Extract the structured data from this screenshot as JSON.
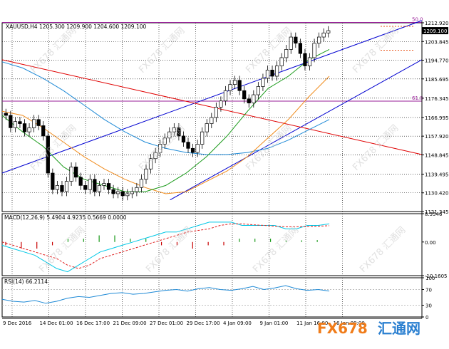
{
  "chart_data": [
    {
      "type": "candlestick",
      "title": "XAUUSD,H4  1205.300 1209.900 1204.600 1209.100",
      "symbol": "XAUUSD,H4",
      "ohlc_header": [
        "1205.300",
        "1209.900",
        "1204.600",
        "1209.100"
      ],
      "current_price": "1209.100",
      "y_ticks": [
        "1212.920",
        "1203.845",
        "1194.770",
        "1185.695",
        "1176.345",
        "1166.995",
        "1157.920",
        "1148.845",
        "1139.495",
        "1130.420",
        "1121.345"
      ],
      "ylim": [
        1121.345,
        1212.92
      ],
      "fib_levels": [
        {
          "label": "50.0",
          "value": 1213.1
        },
        {
          "label": "61.8",
          "value": 1174.9
        }
      ],
      "channel_lines": [
        {
          "color": "#0000d0",
          "points": [
            [
              0,
              1140
            ],
            [
              100,
              1214
            ]
          ]
        },
        {
          "color": "#0000d0",
          "points": [
            [
              40,
              1127
            ],
            [
              100,
              1195
            ]
          ]
        },
        {
          "color": "#e00000",
          "points": [
            [
              0,
              1195
            ],
            [
              100,
              1149
            ]
          ]
        }
      ],
      "moving_averages": [
        {
          "color": "#1f8ad6",
          "values": [
            1194,
            1191,
            1186,
            1180,
            1173,
            1166,
            1160,
            1155,
            1152,
            1150,
            1149,
            1149,
            1150,
            1152,
            1156,
            1161,
            1166
          ]
        },
        {
          "color": "#f08a1a",
          "values": [
            1170,
            1168,
            1162,
            1155,
            1148,
            1142,
            1137,
            1133,
            1130,
            1131,
            1136,
            1141,
            1148,
            1157,
            1166,
            1177,
            1187
          ]
        },
        {
          "color": "#1a9a1a",
          "values": [
            1168,
            1160,
            1153,
            1143,
            1137,
            1134,
            1131,
            1131,
            1134,
            1140,
            1148,
            1158,
            1170,
            1181,
            1187,
            1195,
            1200
          ]
        }
      ],
      "closes": [
        1168,
        1162,
        1165,
        1164,
        1160,
        1162,
        1166,
        1163,
        1158,
        1140,
        1132,
        1134,
        1131,
        1136,
        1143,
        1138,
        1134,
        1132,
        1137,
        1131,
        1134,
        1135,
        1132,
        1130,
        1131,
        1129,
        1130,
        1131,
        1133,
        1137,
        1142,
        1147,
        1150,
        1154,
        1157,
        1160,
        1162,
        1158,
        1155,
        1152,
        1150,
        1154,
        1160,
        1164,
        1167,
        1172,
        1175,
        1180,
        1183,
        1185,
        1180,
        1176,
        1174,
        1178,
        1182,
        1186,
        1190,
        1187,
        1192,
        1196,
        1200,
        1206,
        1203,
        1198,
        1192,
        1196,
        1203,
        1206,
        1208,
        1209.1
      ]
    },
    {
      "type": "line",
      "title": "MACD(12,26,9) 5.4904 4.9235 0.5669 0.0000",
      "y_ticks": [
        "8.5546",
        "0.00",
        "-10.1605"
      ],
      "ylim": [
        -10.1605,
        8.5546
      ],
      "series": [
        {
          "color": "#00c8e6",
          "values": [
            -1,
            -2,
            -3,
            -4,
            -6,
            -8,
            -9,
            -7,
            -5,
            -3,
            -2,
            -1,
            0,
            1,
            2,
            3,
            3,
            4,
            5,
            6,
            6,
            6,
            5,
            5,
            5,
            5,
            4,
            4,
            5,
            5,
            5.49
          ]
        },
        {
          "color": "#e02020",
          "values": [
            0,
            -1,
            -2,
            -3,
            -4,
            -5,
            -7,
            -8,
            -7,
            -5,
            -4,
            -3,
            -2,
            -1,
            0,
            1,
            2,
            3,
            3.5,
            4,
            5,
            5.5,
            5.5,
            5.2,
            5,
            4.8,
            4.6,
            4.6,
            4.7,
            4.8,
            4.92
          ]
        }
      ],
      "histogram": {
        "values": [
          -1,
          -2,
          -2,
          -1,
          1,
          1,
          2,
          2,
          1,
          1,
          -1,
          -1,
          -2,
          -1,
          -1,
          1,
          1,
          1,
          0.5,
          0.5,
          0.57
        ]
      }
    },
    {
      "type": "line",
      "title": "RSI(14) 66.2114",
      "y_ticks": [
        "100",
        "70",
        "30",
        "0"
      ],
      "ylim": [
        0,
        100
      ],
      "series": [
        {
          "color": "#1f8ad6",
          "values": [
            45,
            40,
            38,
            42,
            35,
            40,
            48,
            52,
            50,
            55,
            60,
            62,
            58,
            60,
            64,
            68,
            70,
            66,
            72,
            75,
            70,
            68,
            72,
            78,
            70,
            74,
            80,
            72,
            68,
            70,
            66.21
          ]
        }
      ]
    }
  ],
  "x_ticks": [
    "9 Dec 2016",
    "14 Dec 01:00",
    "16 Dec 17:00",
    "21 Dec 09:00",
    "27 Dec 01:00",
    "29 Dec 17:00",
    "4 Jan 09:00",
    "9 Jan 01:00",
    "11 Jan 16:00",
    "16 Jan 09:00"
  ],
  "watermark": {
    "text": "FX678 汇通网",
    "brand_latin": "FX678",
    "brand_cn": "汇通网"
  },
  "colors": {
    "bull": "#ffffff",
    "bear": "#000000",
    "grid": "#000000",
    "fib": "#9a1f9a",
    "brand_orange": "#f07c1a",
    "brand_blue": "#2a7fd0"
  }
}
